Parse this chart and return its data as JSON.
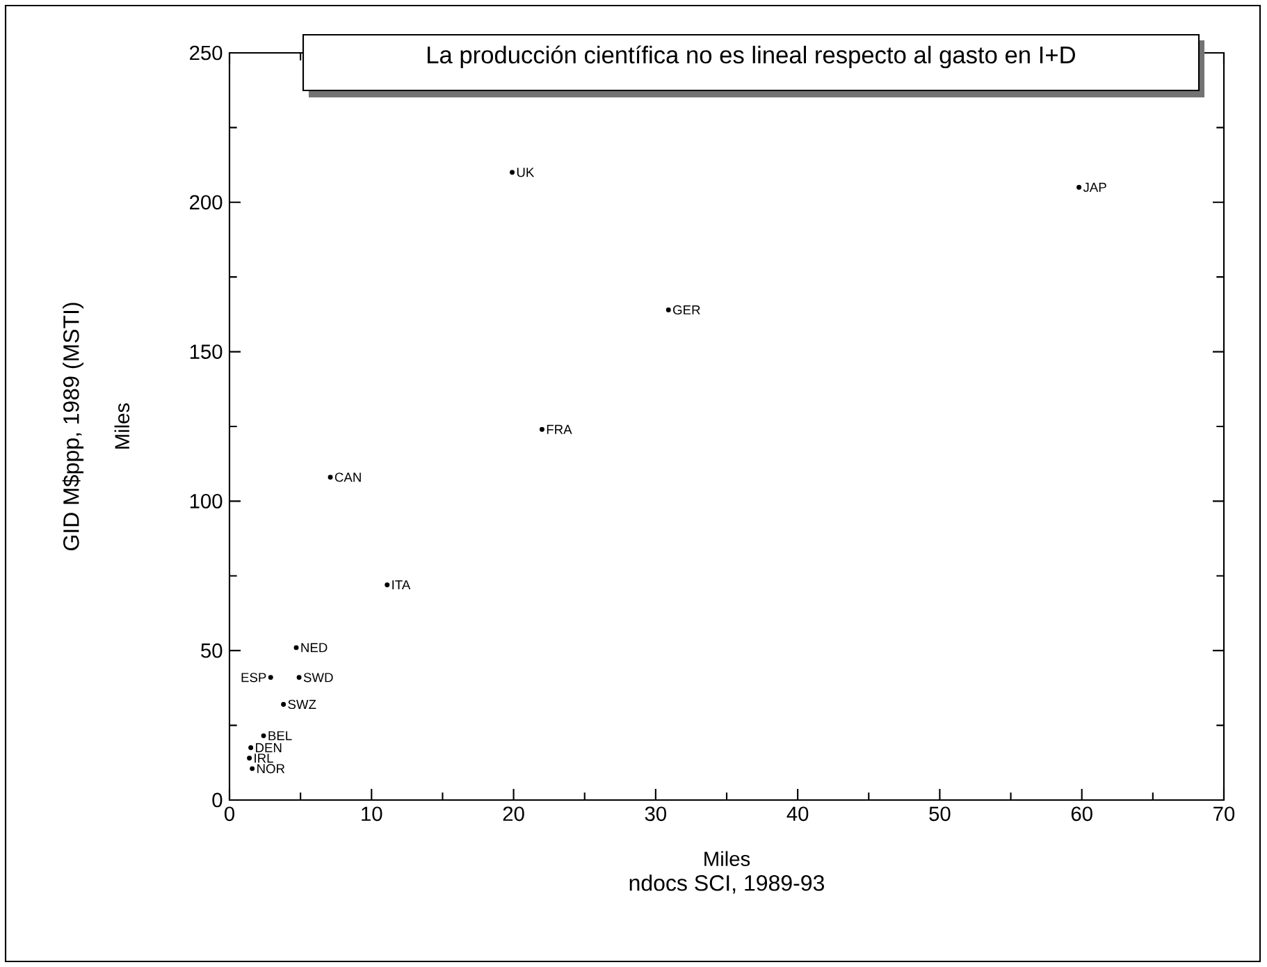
{
  "chart_data": {
    "type": "scatter",
    "title": "La producción científica no es lineal respecto al gasto en I+D",
    "xlabel": "ndocs SCI, 1989-93",
    "ylabel": "GID M$ppp, 1989 (MSTI)",
    "x": [
      19.9,
      59.8,
      30.9,
      22.0,
      7.1,
      11.1,
      4.7,
      2.9,
      4.9,
      3.8,
      2.4,
      1.5,
      1.4,
      1.6
    ],
    "values": [
      210,
      205,
      164,
      124,
      108,
      72,
      51,
      41,
      41,
      32,
      21.5,
      17.5,
      14,
      10.5
    ],
    "marker": "circle",
    "xlim": [
      0,
      70
    ],
    "xticks": [
      0,
      10,
      20,
      30,
      40,
      50,
      60,
      70
    ],
    "ylim": [
      0,
      250
    ],
    "yticks": [
      0,
      50,
      100,
      150,
      200,
      250
    ],
    "annotations": [
      "Miles",
      "Miles",
      {
        "text": "UK",
        "x": 19.9,
        "y": 210
      },
      {
        "text": "JAP",
        "x": 59.8,
        "y": 205
      },
      {
        "text": "GER",
        "x": 30.9,
        "y": 164
      },
      {
        "text": "FRA",
        "x": 22.0,
        "y": 124
      },
      {
        "text": "CAN",
        "x": 7.1,
        "y": 108
      },
      {
        "text": "ITA",
        "x": 11.1,
        "y": 72
      },
      {
        "text": "NED",
        "x": 4.7,
        "y": 51
      },
      {
        "text": "ESP",
        "x": 2.9,
        "y": 41
      },
      {
        "text": "SWD",
        "x": 4.9,
        "y": 41
      },
      {
        "text": "SWZ",
        "x": 3.8,
        "y": 32
      },
      {
        "text": "BEL",
        "x": 2.4,
        "y": 21.5
      },
      {
        "text": "DEN",
        "x": 1.5,
        "y": 17.5
      },
      {
        "text": "IRL",
        "x": 1.4,
        "y": 14
      },
      {
        "text": "NOR",
        "x": 1.6,
        "y": 10.5
      }
    ]
  }
}
